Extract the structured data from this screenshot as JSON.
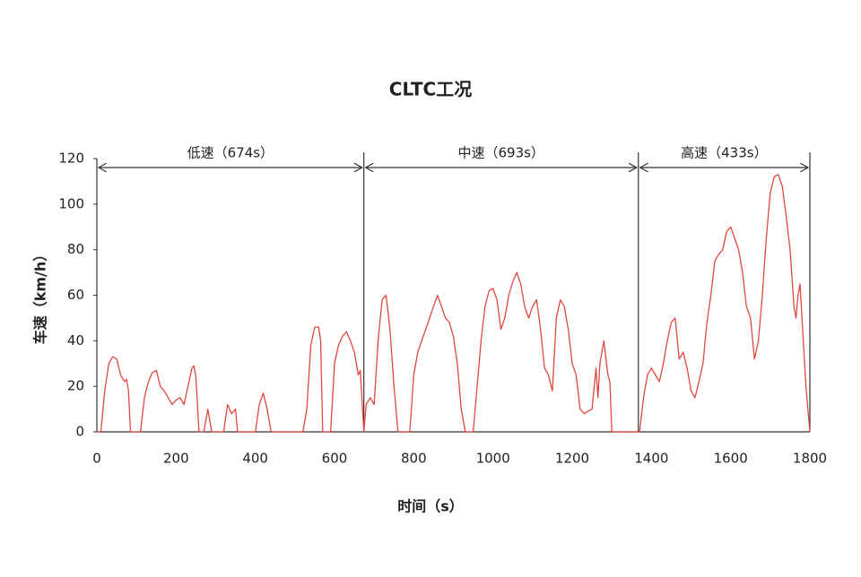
{
  "chart_data": {
    "type": "line",
    "title": "CLTC工况",
    "x_label": "时间（s）",
    "y_label": "车速（km/h）",
    "color": "#e0483f",
    "xlim": [
      0,
      1800
    ],
    "ylim": [
      0,
      120
    ],
    "xticks": [
      0,
      200,
      400,
      600,
      800,
      1000,
      1200,
      1400,
      1600,
      1800
    ],
    "yticks": [
      0,
      20,
      40,
      60,
      80,
      100,
      120
    ],
    "grid": false,
    "segments": [
      {
        "label": "低速（674s）",
        "duration": 674
      },
      {
        "label": "中速（693s）",
        "duration": 693
      },
      {
        "label": "高速（433s）",
        "duration": 433
      }
    ],
    "x": [
      0,
      10,
      20,
      30,
      40,
      50,
      60,
      70,
      75,
      80,
      85,
      100,
      110,
      120,
      130,
      140,
      150,
      160,
      170,
      180,
      190,
      200,
      210,
      220,
      230,
      240,
      245,
      250,
      258,
      270,
      280,
      290,
      320,
      330,
      340,
      350,
      355,
      400,
      410,
      420,
      430,
      440,
      520,
      530,
      540,
      550,
      560,
      565,
      570,
      590,
      600,
      610,
      620,
      630,
      640,
      650,
      660,
      665,
      674,
      680,
      690,
      700,
      710,
      720,
      730,
      740,
      750,
      760,
      790,
      800,
      810,
      820,
      830,
      840,
      850,
      860,
      870,
      880,
      890,
      900,
      910,
      920,
      930,
      950,
      960,
      970,
      980,
      990,
      1000,
      1010,
      1020,
      1030,
      1040,
      1050,
      1060,
      1070,
      1080,
      1090,
      1100,
      1110,
      1120,
      1130,
      1140,
      1150,
      1160,
      1170,
      1180,
      1190,
      1200,
      1210,
      1220,
      1230,
      1240,
      1250,
      1260,
      1265,
      1270,
      1280,
      1290,
      1295,
      1300,
      1367,
      1370,
      1380,
      1390,
      1400,
      1410,
      1420,
      1430,
      1440,
      1450,
      1460,
      1470,
      1480,
      1490,
      1500,
      1510,
      1520,
      1530,
      1540,
      1550,
      1560,
      1570,
      1580,
      1590,
      1600,
      1610,
      1620,
      1630,
      1640,
      1650,
      1660,
      1670,
      1680,
      1690,
      1700,
      1710,
      1720,
      1730,
      1740,
      1750,
      1760,
      1765,
      1770,
      1775,
      1780,
      1790,
      1800
    ],
    "values": [
      0,
      0,
      18,
      30,
      33,
      32,
      25,
      22,
      23,
      18,
      0,
      0,
      0,
      15,
      22,
      26,
      27,
      20,
      18,
      15,
      12,
      14,
      15,
      12,
      20,
      28,
      29,
      24,
      0,
      0,
      10,
      0,
      0,
      12,
      8,
      10,
      0,
      0,
      12,
      17,
      10,
      0,
      0,
      10,
      38,
      46,
      46,
      40,
      0,
      0,
      30,
      38,
      42,
      44,
      40,
      35,
      25,
      27,
      0,
      12,
      15,
      12,
      40,
      58,
      60,
      45,
      20,
      0,
      0,
      25,
      35,
      40,
      45,
      50,
      55,
      60,
      55,
      50,
      48,
      42,
      30,
      10,
      0,
      0,
      20,
      40,
      55,
      62,
      63,
      58,
      45,
      50,
      60,
      66,
      70,
      65,
      55,
      50,
      55,
      58,
      45,
      28,
      25,
      18,
      50,
      58,
      55,
      45,
      30,
      25,
      10,
      8,
      9,
      10,
      28,
      15,
      30,
      40,
      25,
      22,
      0,
      0,
      0,
      15,
      25,
      28,
      25,
      22,
      30,
      40,
      48,
      50,
      32,
      35,
      28,
      18,
      15,
      22,
      30,
      48,
      60,
      75,
      78,
      80,
      88,
      90,
      85,
      80,
      70,
      55,
      50,
      32,
      40,
      60,
      85,
      105,
      112,
      113,
      108,
      95,
      80,
      55,
      50,
      60,
      65,
      50,
      20,
      0
    ]
  }
}
